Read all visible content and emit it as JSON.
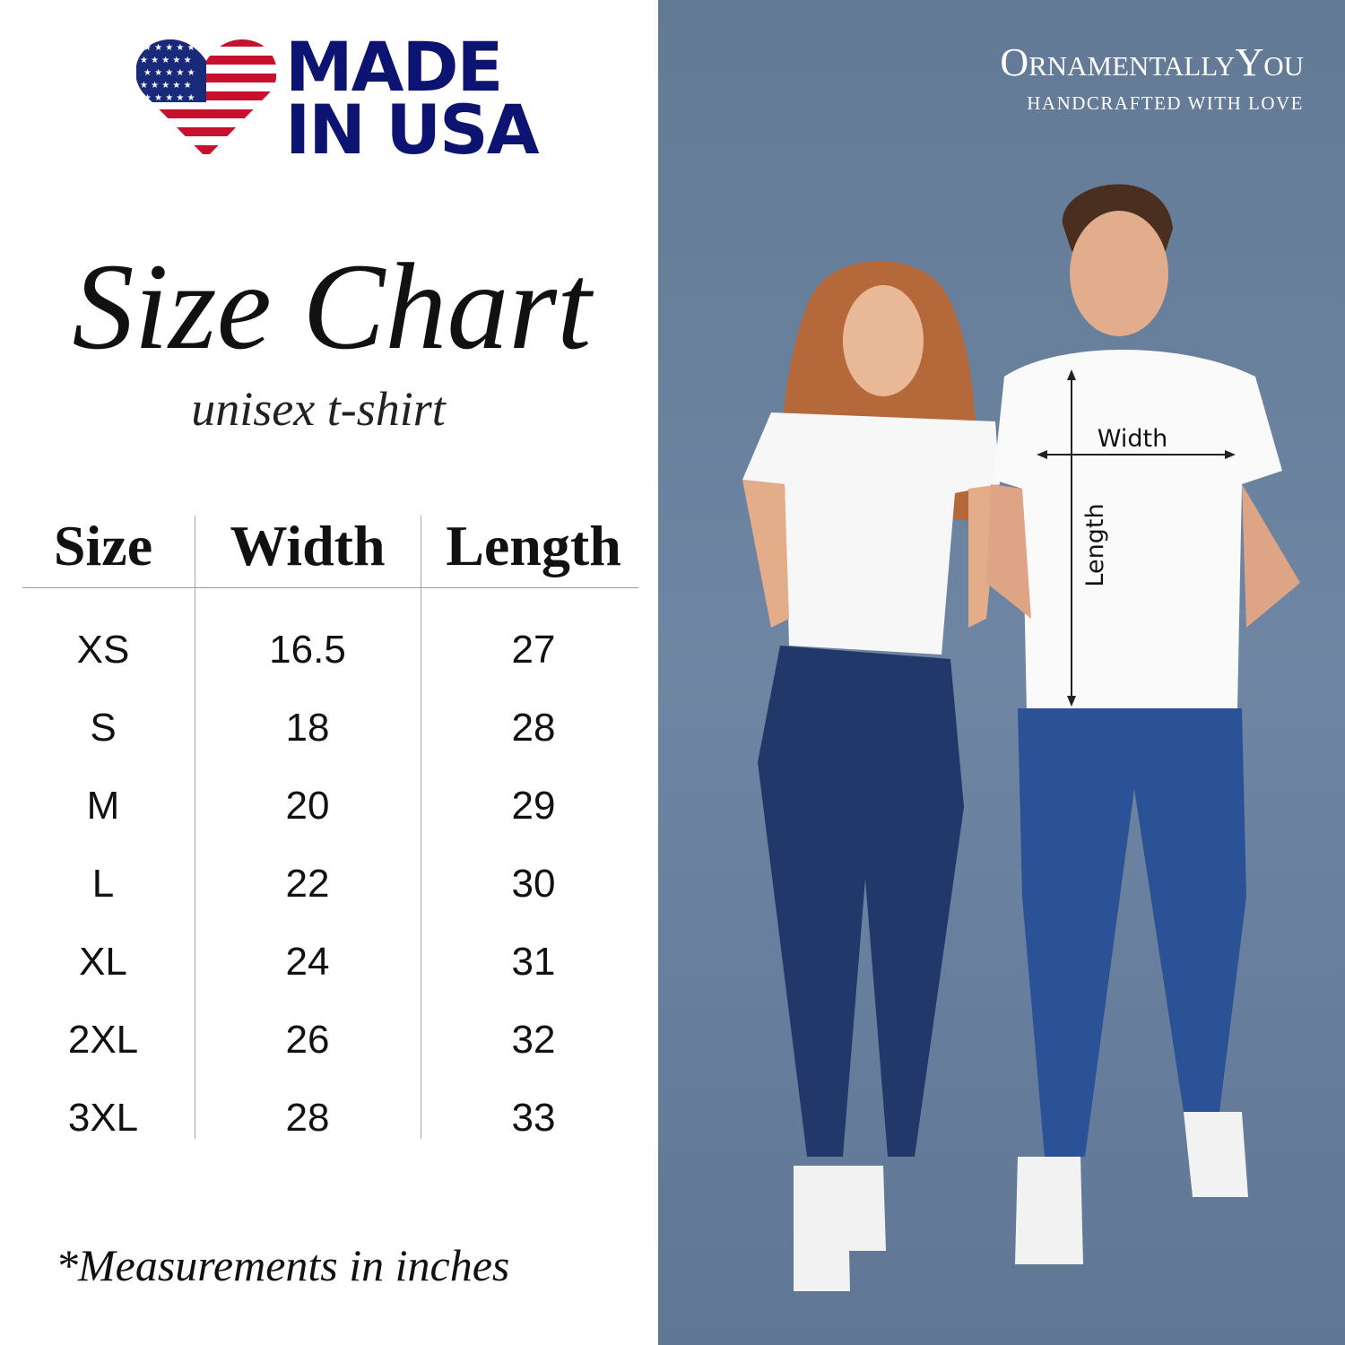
{
  "badge": {
    "line1": "MADE",
    "line2": "IN USA",
    "icon": "us-flag-heart-icon",
    "color": "#0d1370"
  },
  "title": "Size Chart",
  "subtitle": "unisex t-shirt",
  "table": {
    "headers": [
      "Size",
      "Width",
      "Length"
    ],
    "rows": [
      [
        "XS",
        "16.5",
        "27"
      ],
      [
        "S",
        "18",
        "28"
      ],
      [
        "M",
        "20",
        "29"
      ],
      [
        "L",
        "22",
        "30"
      ],
      [
        "XL",
        "24",
        "31"
      ],
      [
        "2XL",
        "26",
        "32"
      ],
      [
        "3XL",
        "28",
        "33"
      ]
    ]
  },
  "footnote": "*Measurements in inches",
  "brand": {
    "name": "OrnamentallyYou",
    "tagline": "HANDCRAFTED WITH LOVE"
  },
  "photo": {
    "width_label": "Width",
    "length_label": "Length",
    "background": "#6a81a0"
  }
}
